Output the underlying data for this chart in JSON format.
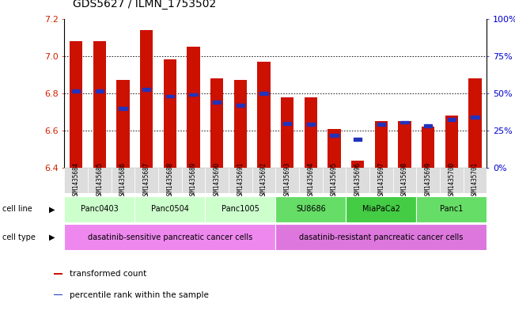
{
  "title": "GDS5627 / ILMN_1753502",
  "samples": [
    "GSM1435684",
    "GSM1435685",
    "GSM1435686",
    "GSM1435687",
    "GSM1435688",
    "GSM1435689",
    "GSM1435690",
    "GSM1435691",
    "GSM1435692",
    "GSM1435693",
    "GSM1435694",
    "GSM1435695",
    "GSM1435696",
    "GSM1435697",
    "GSM1435698",
    "GSM1435699",
    "GSM1435700",
    "GSM1435701"
  ],
  "bar_values": [
    7.08,
    7.08,
    6.87,
    7.14,
    6.98,
    7.05,
    6.88,
    6.87,
    6.97,
    6.78,
    6.78,
    6.61,
    6.44,
    6.65,
    6.65,
    6.62,
    6.68,
    6.88
  ],
  "percentile_values": [
    6.813,
    6.813,
    6.72,
    6.82,
    6.785,
    6.793,
    6.753,
    6.735,
    6.8,
    6.64,
    6.635,
    6.575,
    6.555,
    6.635,
    6.645,
    6.625,
    6.658,
    6.672
  ],
  "bar_base": 6.4,
  "ylim": [
    6.4,
    7.2
  ],
  "yticks": [
    6.4,
    6.6,
    6.8,
    7.0,
    7.2
  ],
  "right_yticks": [
    0,
    25,
    50,
    75,
    100
  ],
  "right_ylim": [
    0,
    100
  ],
  "bar_color": "#cc1100",
  "percentile_color": "#2233bb",
  "cell_lines": [
    {
      "name": "Panc0403",
      "start": 0,
      "end": 3,
      "color": "#ccffcc"
    },
    {
      "name": "Panc0504",
      "start": 3,
      "end": 6,
      "color": "#ccffcc"
    },
    {
      "name": "Panc1005",
      "start": 6,
      "end": 9,
      "color": "#ccffcc"
    },
    {
      "name": "SU8686",
      "start": 9,
      "end": 12,
      "color": "#66dd66"
    },
    {
      "name": "MiaPaCa2",
      "start": 12,
      "end": 15,
      "color": "#44cc44"
    },
    {
      "name": "Panc1",
      "start": 15,
      "end": 18,
      "color": "#66dd66"
    }
  ],
  "cell_types": [
    {
      "name": "dasatinib-sensitive pancreatic cancer cells",
      "start": 0,
      "end": 9,
      "color": "#ee88ee"
    },
    {
      "name": "dasatinib-resistant pancreatic cancer cells",
      "start": 9,
      "end": 18,
      "color": "#dd77dd"
    }
  ],
  "legend_items": [
    {
      "label": "transformed count",
      "color": "#cc1100"
    },
    {
      "label": "percentile rank within the sample",
      "color": "#2233bb"
    }
  ],
  "title_fontsize": 10,
  "axis_color_left": "#cc2200",
  "axis_color_right": "#0000cc",
  "bg_color": "#ffffff",
  "grid_color": "#000000",
  "xtick_bg": "#dddddd"
}
